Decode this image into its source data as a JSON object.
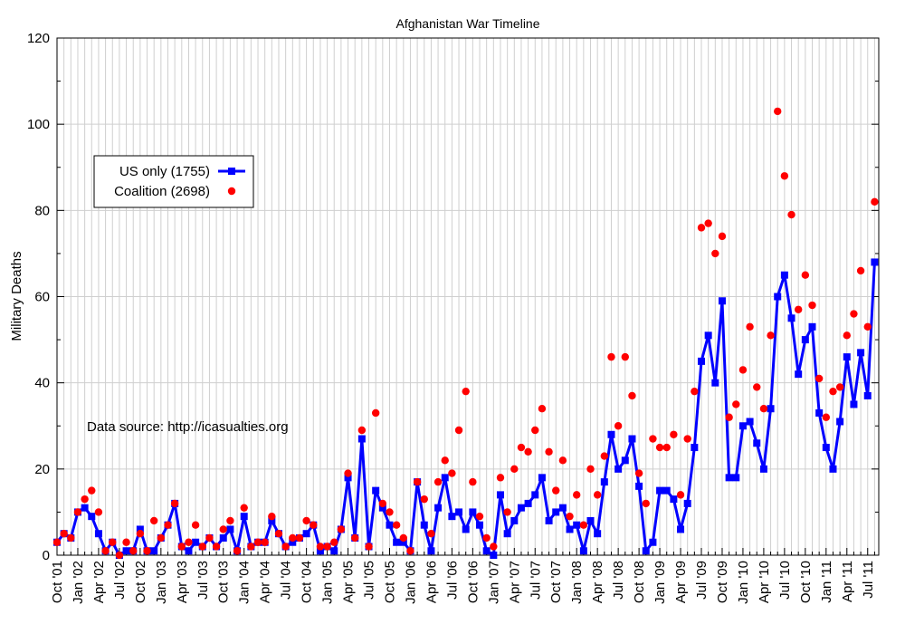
{
  "chart_data": {
    "type": "line",
    "title": "Afghanistan War Timeline",
    "xlabel": "",
    "ylabel": "Military Deaths",
    "ylim": [
      0,
      120
    ],
    "yticks": [
      0,
      20,
      40,
      60,
      80,
      100,
      120
    ],
    "grid": true,
    "legend_position": "left",
    "annotation": "Data source: http://icasualties.org",
    "colors": {
      "us": "#0000ff",
      "coalition": "#ff0000"
    },
    "x": [
      "Oct '01",
      "Nov '01",
      "Dec '01",
      "Jan '02",
      "Feb '02",
      "Mar '02",
      "Apr '02",
      "May '02",
      "Jun '02",
      "Jul '02",
      "Aug '02",
      "Sep '02",
      "Oct '02",
      "Nov '02",
      "Dec '02",
      "Jan '03",
      "Feb '03",
      "Mar '03",
      "Apr '03",
      "May '03",
      "Jun '03",
      "Jul '03",
      "Aug '03",
      "Sep '03",
      "Oct '03",
      "Nov '03",
      "Dec '03",
      "Jan '04",
      "Feb '04",
      "Mar '04",
      "Apr '04",
      "May '04",
      "Jun '04",
      "Jul '04",
      "Aug '04",
      "Sep '04",
      "Oct '04",
      "Nov '04",
      "Dec '04",
      "Jan '05",
      "Feb '05",
      "Mar '05",
      "Apr '05",
      "May '05",
      "Jun '05",
      "Jul '05",
      "Aug '05",
      "Sep '05",
      "Oct '05",
      "Nov '05",
      "Dec '05",
      "Jan '06",
      "Feb '06",
      "Mar '06",
      "Apr '06",
      "May '06",
      "Jun '06",
      "Jul '06",
      "Aug '06",
      "Sep '06",
      "Oct '06",
      "Nov '06",
      "Dec '06",
      "Jan '07",
      "Feb '07",
      "Mar '07",
      "Apr '07",
      "May '07",
      "Jun '07",
      "Jul '07",
      "Aug '07",
      "Sep '07",
      "Oct '07",
      "Nov '07",
      "Dec '07",
      "Jan '08",
      "Feb '08",
      "Mar '08",
      "Apr '08",
      "May '08",
      "Jun '08",
      "Jul '08",
      "Aug '08",
      "Sep '08",
      "Oct '08",
      "Nov '08",
      "Dec '08",
      "Jan '09",
      "Feb '09",
      "Mar '09",
      "Apr '09",
      "May '09",
      "Jun '09",
      "Jul '09",
      "Aug '09",
      "Sep '09",
      "Oct '09",
      "Nov '09",
      "Dec '09",
      "Jan '10",
      "Feb '10",
      "Mar '10",
      "Apr '10",
      "May '10",
      "Jun '10",
      "Jul '10",
      "Aug '10",
      "Sep '10",
      "Oct '10",
      "Nov '10",
      "Dec '10",
      "Jan '11",
      "Feb '11",
      "Mar '11",
      "Apr '11",
      "May '11",
      "Jun '11",
      "Jul '11",
      "Aug '11"
    ],
    "xtick_labels": [
      "Oct '01",
      "Jan '02",
      "Apr '02",
      "Jul '02",
      "Oct '02",
      "Jan '03",
      "Apr '03",
      "Jul '03",
      "Oct '03",
      "Jan '04",
      "Apr '04",
      "Jul '04",
      "Oct '04",
      "Jan '05",
      "Apr '05",
      "Jul '05",
      "Oct '05",
      "Jan '06",
      "Apr '06",
      "Jul '06",
      "Oct '06",
      "Jan '07",
      "Apr '07",
      "Jul '07",
      "Oct '07",
      "Jan '08",
      "Apr '08",
      "Jul '08",
      "Oct '08",
      "Jan '09",
      "Apr '09",
      "Jul '09",
      "Oct '09",
      "Jan '10",
      "Apr '10",
      "Jul '10",
      "Oct '10",
      "Jan '11",
      "Apr '11",
      "Jul '11"
    ],
    "series": [
      {
        "name": "US only (1755)",
        "marker": "square",
        "line": true,
        "values": [
          3,
          5,
          4,
          10,
          11,
          9,
          5,
          1,
          3,
          0,
          1,
          1,
          6,
          1,
          1,
          4,
          7,
          12,
          2,
          1,
          3,
          2,
          4,
          2,
          4,
          6,
          1,
          9,
          2,
          3,
          3,
          8,
          5,
          2,
          3,
          4,
          5,
          7,
          1,
          2,
          1,
          6,
          18,
          4,
          27,
          2,
          15,
          11,
          7,
          3,
          3,
          1,
          17,
          7,
          1,
          11,
          18,
          9,
          10,
          6,
          10,
          7,
          1,
          0,
          14,
          5,
          8,
          11,
          12,
          14,
          18,
          8,
          10,
          11,
          6,
          7,
          1,
          8,
          5,
          17,
          28,
          20,
          22,
          27,
          16,
          1,
          3,
          15,
          15,
          13,
          6,
          12,
          25,
          45,
          51,
          40,
          59,
          18,
          18,
          30,
          31,
          26,
          20,
          34,
          60,
          65,
          55,
          42,
          50,
          53,
          33,
          25,
          20,
          31,
          46,
          35,
          47,
          37,
          68
        ]
      },
      {
        "name": "Coalition (2698)",
        "marker": "circle",
        "line": false,
        "values": [
          3,
          5,
          4,
          10,
          13,
          15,
          10,
          1,
          3,
          0,
          3,
          1,
          5,
          1,
          8,
          4,
          7,
          12,
          2,
          3,
          7,
          2,
          4,
          2,
          6,
          8,
          1,
          11,
          2,
          3,
          3,
          9,
          5,
          2,
          4,
          4,
          8,
          7,
          2,
          2,
          3,
          6,
          19,
          4,
          29,
          2,
          33,
          12,
          10,
          7,
          4,
          1,
          17,
          13,
          5,
          17,
          22,
          19,
          29,
          38,
          17,
          9,
          4,
          2,
          18,
          10,
          20,
          25,
          24,
          29,
          34,
          24,
          15,
          22,
          9,
          14,
          7,
          20,
          14,
          23,
          46,
          30,
          46,
          37,
          19,
          12,
          27,
          25,
          25,
          28,
          14,
          27,
          38,
          76,
          77,
          70,
          74,
          32,
          35,
          43,
          53,
          39,
          34,
          51,
          103,
          88,
          79,
          57,
          65,
          58,
          41,
          32,
          38,
          39,
          51,
          56,
          66,
          53,
          82
        ]
      }
    ],
    "legend": {
      "us_label": "US only (1755)",
      "coalition_label": "Coalition (2698)"
    }
  }
}
